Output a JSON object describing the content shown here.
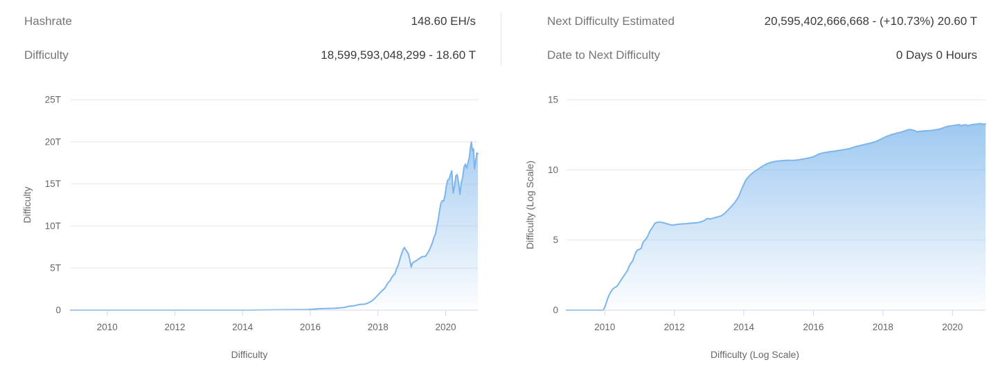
{
  "page": {
    "background": "#ffffff"
  },
  "header": {
    "left": {
      "rows": [
        {
          "label": "Hashrate",
          "value": "148.60 EH/s"
        },
        {
          "label": "Difficulty",
          "value": "18,599,593,048,299 - 18.60 T"
        }
      ]
    },
    "right": {
      "rows": [
        {
          "label": "Next Difficulty Estimated",
          "value": "20,595,402,666,668 - (+10.73%) 20.60 T"
        },
        {
          "label": "Date to Next Difficulty",
          "value": "0 Days 0 Hours"
        }
      ]
    }
  },
  "theme": {
    "line_color": "#7cb5ec",
    "area_top_color": "rgba(124,181,236,0.85)",
    "area_bottom_color": "rgba(124,181,236,0.02)",
    "gridline_color": "#e6e6e6",
    "axis_line_color": "#ccd6eb",
    "tick_label_color": "#666666",
    "axis_title_color": "#666666",
    "stat_label_color": "#757575",
    "stat_value_color": "#3b3b3f"
  },
  "chart_data": [
    {
      "type": "area",
      "title": "",
      "xlabel": "Difficulty",
      "ylabel": "Difficulty",
      "legend": "none",
      "grid": "horizontal",
      "x_domain": [
        2008.92,
        2020.95
      ],
      "ylim": [
        0,
        25.7
      ],
      "y_unit": "T (difficulty, trillions)",
      "x_ticks": [
        {
          "label": "2010",
          "year": 2010
        },
        {
          "label": "2012",
          "year": 2012
        },
        {
          "label": "2014",
          "year": 2014
        },
        {
          "label": "2016",
          "year": 2016
        },
        {
          "label": "2018",
          "year": 2018
        },
        {
          "label": "2020",
          "year": 2020
        }
      ],
      "y_ticks": [
        {
          "label": "0",
          "value": 0
        },
        {
          "label": "5T",
          "value": 5
        },
        {
          "label": "10T",
          "value": 10
        },
        {
          "label": "15T",
          "value": 15
        },
        {
          "label": "20T",
          "value": 20
        },
        {
          "label": "25T",
          "value": 25
        }
      ],
      "points": [
        [
          2008.92,
          0
        ],
        [
          2009.5,
          0
        ],
        [
          2010,
          0
        ],
        [
          2010.5,
          0
        ],
        [
          2011,
          0
        ],
        [
          2011.5,
          0
        ],
        [
          2012,
          0
        ],
        [
          2012.5,
          0
        ],
        [
          2013,
          0
        ],
        [
          2013.5,
          0
        ],
        [
          2013.9,
          0.001
        ],
        [
          2014.2,
          0.004
        ],
        [
          2014.5,
          0.017
        ],
        [
          2014.8,
          0.03
        ],
        [
          2015,
          0.044
        ],
        [
          2015.3,
          0.047
        ],
        [
          2015.6,
          0.06
        ],
        [
          2015.9,
          0.072
        ],
        [
          2016.1,
          0.12
        ],
        [
          2016.3,
          0.17
        ],
        [
          2016.5,
          0.2
        ],
        [
          2016.7,
          0.22
        ],
        [
          2016.9,
          0.28
        ],
        [
          2017,
          0.32
        ],
        [
          2017.15,
          0.46
        ],
        [
          2017.3,
          0.52
        ],
        [
          2017.45,
          0.68
        ],
        [
          2017.6,
          0.71
        ],
        [
          2017.7,
          0.84
        ],
        [
          2017.8,
          1.05
        ],
        [
          2017.9,
          1.37
        ],
        [
          2018,
          1.81
        ],
        [
          2018.1,
          2.23
        ],
        [
          2018.2,
          2.6
        ],
        [
          2018.3,
          3.29
        ],
        [
          2018.35,
          3.46
        ],
        [
          2018.4,
          3.84
        ],
        [
          2018.45,
          4.14
        ],
        [
          2018.5,
          4.31
        ],
        [
          2018.55,
          4.94
        ],
        [
          2018.6,
          5.36
        ],
        [
          2018.65,
          6.12
        ],
        [
          2018.7,
          6.73
        ],
        [
          2018.74,
          7.18
        ],
        [
          2018.78,
          7.45
        ],
        [
          2018.82,
          7.15
        ],
        [
          2018.86,
          6.93
        ],
        [
          2018.9,
          6.65
        ],
        [
          2018.94,
          5.95
        ],
        [
          2018.98,
          5.11
        ],
        [
          2019.02,
          5.62
        ],
        [
          2019.1,
          5.81
        ],
        [
          2019.2,
          6.07
        ],
        [
          2019.3,
          6.35
        ],
        [
          2019.4,
          6.39
        ],
        [
          2019.45,
          6.7
        ],
        [
          2019.5,
          7.0
        ],
        [
          2019.55,
          7.46
        ],
        [
          2019.6,
          7.93
        ],
        [
          2019.65,
          8.61
        ],
        [
          2019.7,
          9.06
        ],
        [
          2019.74,
          9.99
        ],
        [
          2019.78,
          10.77
        ],
        [
          2019.82,
          11.89
        ],
        [
          2019.86,
          12.72
        ],
        [
          2019.9,
          13.01
        ],
        [
          2019.94,
          12.95
        ],
        [
          2019.98,
          13.69
        ],
        [
          2020.02,
          14.78
        ],
        [
          2020.06,
          15.47
        ],
        [
          2020.1,
          15.55
        ],
        [
          2020.14,
          16.1
        ],
        [
          2020.18,
          16.55
        ],
        [
          2020.22,
          13.91
        ],
        [
          2020.26,
          14.72
        ],
        [
          2020.3,
          15.96
        ],
        [
          2020.34,
          16.1
        ],
        [
          2020.38,
          15.14
        ],
        [
          2020.42,
          13.73
        ],
        [
          2020.46,
          15.14
        ],
        [
          2020.5,
          15.78
        ],
        [
          2020.54,
          16.95
        ],
        [
          2020.58,
          17.35
        ],
        [
          2020.62,
          16.85
        ],
        [
          2020.66,
          17.56
        ],
        [
          2020.7,
          18.18
        ],
        [
          2020.73,
          19.31
        ],
        [
          2020.76,
          19.97
        ],
        [
          2020.79,
          18.9
        ],
        [
          2020.82,
          19.16
        ],
        [
          2020.85,
          16.79
        ],
        [
          2020.88,
          17.6
        ],
        [
          2020.92,
          18.67
        ],
        [
          2020.95,
          18.6
        ]
      ]
    },
    {
      "type": "area",
      "title": "",
      "xlabel": "Difficulty (Log Scale)",
      "ylabel": "Difficulty (Log Scale)",
      "legend": "none",
      "grid": "horizontal",
      "x_domain": [
        2008.9,
        2020.95
      ],
      "ylim": [
        0,
        15.5
      ],
      "y_unit": "log10(difficulty)",
      "x_ticks": [
        {
          "label": "2010",
          "year": 2010
        },
        {
          "label": "2012",
          "year": 2012
        },
        {
          "label": "2014",
          "year": 2014
        },
        {
          "label": "2016",
          "year": 2016
        },
        {
          "label": "2018",
          "year": 2018
        },
        {
          "label": "2020",
          "year": 2020
        }
      ],
      "y_ticks": [
        {
          "label": "0",
          "value": 0
        },
        {
          "label": "5",
          "value": 5
        },
        {
          "label": "10",
          "value": 10
        },
        {
          "label": "15",
          "value": 15
        }
      ],
      "points": [
        [
          2008.9,
          0
        ],
        [
          2009.3,
          0
        ],
        [
          2009.6,
          0
        ],
        [
          2009.95,
          0
        ],
        [
          2010.0,
          0.2
        ],
        [
          2010.04,
          0.5
        ],
        [
          2010.08,
          0.8
        ],
        [
          2010.12,
          1.05
        ],
        [
          2010.16,
          1.25
        ],
        [
          2010.2,
          1.4
        ],
        [
          2010.25,
          1.55
        ],
        [
          2010.3,
          1.63
        ],
        [
          2010.35,
          1.7
        ],
        [
          2010.4,
          1.88
        ],
        [
          2010.45,
          2.08
        ],
        [
          2010.5,
          2.26
        ],
        [
          2010.54,
          2.42
        ],
        [
          2010.58,
          2.56
        ],
        [
          2010.62,
          2.71
        ],
        [
          2010.66,
          2.86
        ],
        [
          2010.7,
          3.14
        ],
        [
          2010.75,
          3.34
        ],
        [
          2010.8,
          3.49
        ],
        [
          2010.85,
          3.84
        ],
        [
          2010.9,
          4.16
        ],
        [
          2010.95,
          4.3
        ],
        [
          2011.0,
          4.34
        ],
        [
          2011.05,
          4.42
        ],
        [
          2011.1,
          4.84
        ],
        [
          2011.15,
          4.97
        ],
        [
          2011.22,
          5.2
        ],
        [
          2011.3,
          5.64
        ],
        [
          2011.38,
          5.94
        ],
        [
          2011.44,
          6.19
        ],
        [
          2011.5,
          6.25
        ],
        [
          2011.55,
          6.28
        ],
        [
          2011.6,
          6.27
        ],
        [
          2011.66,
          6.24
        ],
        [
          2011.72,
          6.21
        ],
        [
          2011.78,
          6.16
        ],
        [
          2011.84,
          6.12
        ],
        [
          2011.9,
          6.08
        ],
        [
          2011.96,
          6.06
        ],
        [
          2012.05,
          6.1
        ],
        [
          2012.15,
          6.13
        ],
        [
          2012.25,
          6.15
        ],
        [
          2012.35,
          6.16
        ],
        [
          2012.45,
          6.19
        ],
        [
          2012.55,
          6.21
        ],
        [
          2012.65,
          6.23
        ],
        [
          2012.75,
          6.28
        ],
        [
          2012.85,
          6.37
        ],
        [
          2012.92,
          6.49
        ],
        [
          2012.97,
          6.54
        ],
        [
          2013.02,
          6.49
        ],
        [
          2013.08,
          6.53
        ],
        [
          2013.15,
          6.58
        ],
        [
          2013.25,
          6.65
        ],
        [
          2013.35,
          6.72
        ],
        [
          2013.45,
          6.9
        ],
        [
          2013.55,
          7.15
        ],
        [
          2013.65,
          7.42
        ],
        [
          2013.75,
          7.7
        ],
        [
          2013.85,
          8.1
        ],
        [
          2013.95,
          8.7
        ],
        [
          2014.05,
          9.25
        ],
        [
          2014.15,
          9.55
        ],
        [
          2014.25,
          9.78
        ],
        [
          2014.35,
          9.95
        ],
        [
          2014.45,
          10.12
        ],
        [
          2014.55,
          10.28
        ],
        [
          2014.65,
          10.42
        ],
        [
          2014.75,
          10.51
        ],
        [
          2014.85,
          10.58
        ],
        [
          2014.95,
          10.62
        ],
        [
          2015.1,
          10.66
        ],
        [
          2015.25,
          10.68
        ],
        [
          2015.4,
          10.67
        ],
        [
          2015.55,
          10.71
        ],
        [
          2015.7,
          10.77
        ],
        [
          2015.85,
          10.84
        ],
        [
          2016.0,
          10.93
        ],
        [
          2016.1,
          11.06
        ],
        [
          2016.2,
          11.16
        ],
        [
          2016.3,
          11.22
        ],
        [
          2016.45,
          11.28
        ],
        [
          2016.6,
          11.33
        ],
        [
          2016.75,
          11.39
        ],
        [
          2016.9,
          11.45
        ],
        [
          2017.05,
          11.52
        ],
        [
          2017.2,
          11.65
        ],
        [
          2017.35,
          11.73
        ],
        [
          2017.5,
          11.83
        ],
        [
          2017.65,
          11.91
        ],
        [
          2017.8,
          12.02
        ],
        [
          2017.95,
          12.2
        ],
        [
          2018.1,
          12.38
        ],
        [
          2018.25,
          12.51
        ],
        [
          2018.4,
          12.62
        ],
        [
          2018.55,
          12.71
        ],
        [
          2018.7,
          12.84
        ],
        [
          2018.78,
          12.87
        ],
        [
          2018.86,
          12.84
        ],
        [
          2018.94,
          12.77
        ],
        [
          2018.98,
          12.71
        ],
        [
          2019.06,
          12.75
        ],
        [
          2019.2,
          12.78
        ],
        [
          2019.35,
          12.8
        ],
        [
          2019.5,
          12.85
        ],
        [
          2019.62,
          12.9
        ],
        [
          2019.74,
          13.0
        ],
        [
          2019.86,
          13.1
        ],
        [
          2019.98,
          13.14
        ],
        [
          2020.1,
          13.19
        ],
        [
          2020.2,
          13.22
        ],
        [
          2020.24,
          13.14
        ],
        [
          2020.32,
          13.2
        ],
        [
          2020.4,
          13.21
        ],
        [
          2020.44,
          13.14
        ],
        [
          2020.52,
          13.2
        ],
        [
          2020.6,
          13.24
        ],
        [
          2020.68,
          13.24
        ],
        [
          2020.74,
          13.29
        ],
        [
          2020.8,
          13.3
        ],
        [
          2020.85,
          13.27
        ],
        [
          2020.9,
          13.25
        ],
        [
          2020.95,
          13.27
        ]
      ]
    }
  ]
}
